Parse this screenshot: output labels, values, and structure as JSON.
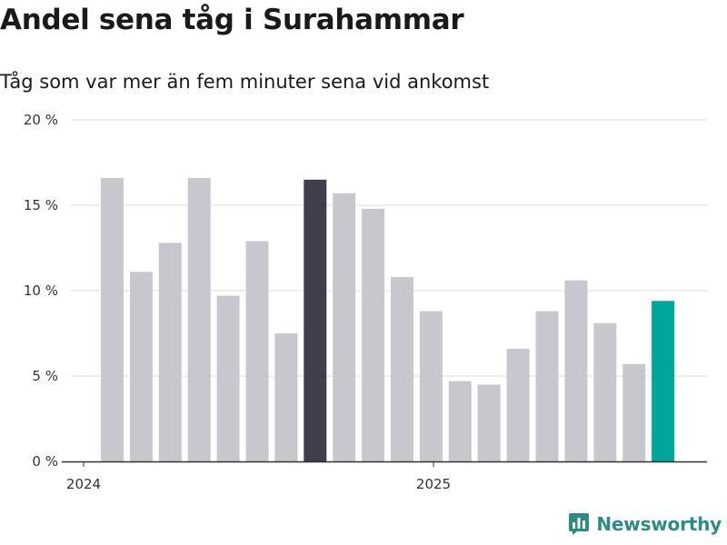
{
  "title": "Andel sena tåg i Surahammar",
  "subtitle": "Tåg som var mer än fem minuter sena vid ankomst",
  "brand": {
    "name": "Newsworthy",
    "icon": "newsworthy-logo-icon",
    "color": "#2e8b84"
  },
  "colors": {
    "default": "#c8c7ce",
    "highlight": "#3f3e4a",
    "latest": "#00a69a",
    "grid": "#dddddd",
    "axis": "#333333"
  },
  "chart_data": {
    "type": "bar",
    "title": "Andel sena tåg i Surahammar",
    "subtitle": "Tåg som var mer än fem minuter sena vid ankomst",
    "xlabel": "",
    "ylabel": "",
    "ylim": [
      0,
      20
    ],
    "yticks": [
      0,
      5,
      10,
      15,
      20
    ],
    "ytick_labels": [
      "0 %",
      "5 %",
      "10 %",
      "15 %",
      "20 %"
    ],
    "unit": "%",
    "grid": true,
    "xticks": [
      "2024",
      "2025"
    ],
    "categories": [
      "2024-01",
      "2024-02",
      "2024-03",
      "2024-04",
      "2024-05",
      "2024-06",
      "2024-07",
      "2024-08",
      "2024-09",
      "2024-10",
      "2024-11",
      "2024-12",
      "2025-01",
      "2025-02",
      "2025-03",
      "2025-04",
      "2025-05",
      "2025-06",
      "2025-07",
      "2025-08"
    ],
    "values": [
      16.6,
      11.1,
      12.8,
      16.6,
      9.7,
      12.9,
      7.5,
      16.5,
      15.7,
      14.8,
      10.8,
      8.8,
      4.7,
      4.5,
      6.6,
      8.8,
      10.6,
      8.1,
      5.7,
      9.4
    ],
    "highlight_index": 7,
    "latest_index": 19
  }
}
